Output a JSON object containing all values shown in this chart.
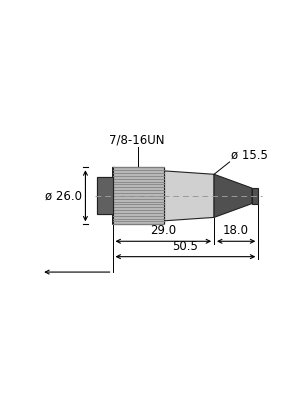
{
  "bg_color": "#ffffff",
  "connector_light": "#d0d0d0",
  "nut_color": "#b8b8b8",
  "nut_lines_color": "#888888",
  "nut_dark": "#606060",
  "cable_color": "#505050",
  "label_7816un": "7/8-16UN",
  "label_dia155": "ø 15.5",
  "label_dia260": "ø 26.0",
  "label_290": "29.0",
  "label_180": "18.0",
  "label_505": "50.5",
  "centerline_color": "#999999",
  "dim_color": "#000000",
  "font_size": 8.5
}
